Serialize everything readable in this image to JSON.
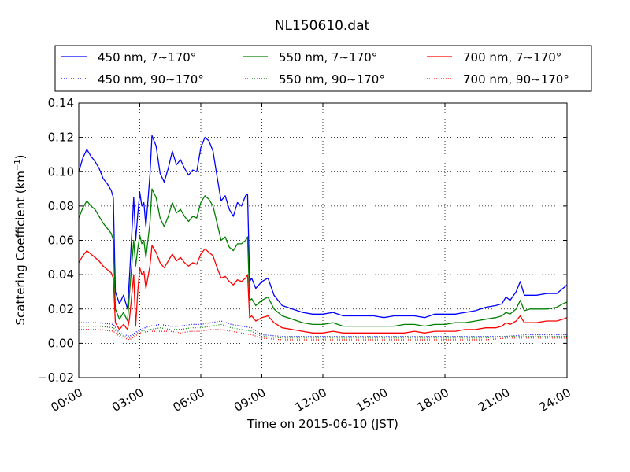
{
  "chart_data": {
    "type": "line",
    "title": "NL150610.dat",
    "xlabel": "Time on 2015-06-10 (JST)",
    "ylabel": "Scattering Coefficient (km",
    "ylabel_sup": "−1",
    "ylabel_close": ")",
    "xlim": [
      0,
      24
    ],
    "ylim": [
      -0.02,
      0.14
    ],
    "grid": true,
    "legend_position": "top",
    "x_ticks": [
      0,
      3,
      6,
      9,
      12,
      15,
      18,
      21,
      24
    ],
    "x_tick_labels": [
      "00:00",
      "03:00",
      "06:00",
      "09:00",
      "12:00",
      "15:00",
      "18:00",
      "21:00",
      "24:00"
    ],
    "y_ticks": [
      -0.02,
      0.0,
      0.02,
      0.04,
      0.06,
      0.08,
      0.1,
      0.12,
      0.14
    ],
    "y_tick_labels": [
      "−0.02",
      "0.00",
      "0.02",
      "0.04",
      "0.06",
      "0.08",
      "0.10",
      "0.12",
      "0.14"
    ],
    "series": [
      {
        "name": "450 nm, 7∼170°",
        "color": "#0000ff",
        "style": "solid",
        "x": [
          0,
          0.2,
          0.4,
          0.6,
          0.8,
          1.0,
          1.2,
          1.4,
          1.6,
          1.7,
          1.8,
          2.0,
          2.2,
          2.4,
          2.5,
          2.7,
          2.8,
          2.9,
          3.0,
          3.1,
          3.2,
          3.3,
          3.5,
          3.6,
          3.8,
          4.0,
          4.2,
          4.4,
          4.6,
          4.8,
          5.0,
          5.2,
          5.4,
          5.6,
          5.8,
          6.0,
          6.2,
          6.4,
          6.6,
          6.8,
          7.0,
          7.2,
          7.4,
          7.6,
          7.8,
          8.0,
          8.2,
          8.3,
          8.4,
          8.5,
          8.7,
          9.0,
          9.3,
          9.6,
          10.0,
          10.5,
          11.0,
          11.5,
          12.0,
          12.5,
          13.0,
          13.5,
          14.0,
          14.5,
          15.0,
          15.5,
          16.0,
          16.5,
          17.0,
          17.5,
          18.0,
          18.5,
          19.0,
          19.5,
          20.0,
          20.5,
          20.8,
          21.0,
          21.2,
          21.5,
          21.7,
          21.9,
          22.2,
          22.5,
          23.0,
          23.5,
          23.8,
          24.0
        ],
        "y": [
          0.1,
          0.108,
          0.113,
          0.109,
          0.106,
          0.102,
          0.096,
          0.093,
          0.089,
          0.085,
          0.03,
          0.023,
          0.028,
          0.02,
          0.04,
          0.085,
          0.06,
          0.075,
          0.088,
          0.08,
          0.082,
          0.068,
          0.098,
          0.121,
          0.115,
          0.099,
          0.094,
          0.102,
          0.112,
          0.104,
          0.107,
          0.102,
          0.098,
          0.101,
          0.1,
          0.114,
          0.12,
          0.118,
          0.112,
          0.097,
          0.083,
          0.086,
          0.078,
          0.074,
          0.082,
          0.08,
          0.086,
          0.087,
          0.036,
          0.038,
          0.032,
          0.036,
          0.038,
          0.028,
          0.022,
          0.02,
          0.018,
          0.017,
          0.017,
          0.018,
          0.016,
          0.016,
          0.016,
          0.016,
          0.015,
          0.016,
          0.016,
          0.016,
          0.015,
          0.017,
          0.017,
          0.017,
          0.018,
          0.019,
          0.021,
          0.022,
          0.023,
          0.027,
          0.025,
          0.03,
          0.036,
          0.028,
          0.028,
          0.028,
          0.029,
          0.029,
          0.032,
          0.034
        ]
      },
      {
        "name": "550 nm, 7∼170°",
        "color": "#008000",
        "style": "solid",
        "x": [
          0,
          0.2,
          0.4,
          0.6,
          0.8,
          1.0,
          1.2,
          1.4,
          1.6,
          1.7,
          1.8,
          2.0,
          2.2,
          2.4,
          2.5,
          2.7,
          2.8,
          2.9,
          3.0,
          3.1,
          3.2,
          3.3,
          3.5,
          3.6,
          3.8,
          4.0,
          4.2,
          4.4,
          4.6,
          4.8,
          5.0,
          5.2,
          5.4,
          5.6,
          5.8,
          6.0,
          6.2,
          6.4,
          6.6,
          6.8,
          7.0,
          7.2,
          7.4,
          7.6,
          7.8,
          8.0,
          8.2,
          8.3,
          8.4,
          8.5,
          8.7,
          9.0,
          9.3,
          9.6,
          10.0,
          10.5,
          11.0,
          11.5,
          12.0,
          12.5,
          13.0,
          13.5,
          14.0,
          14.5,
          15.0,
          15.5,
          16.0,
          16.5,
          17.0,
          17.5,
          18.0,
          18.5,
          19.0,
          19.5,
          20.0,
          20.5,
          20.8,
          21.0,
          21.2,
          21.5,
          21.7,
          21.9,
          22.2,
          22.5,
          23.0,
          23.5,
          23.8,
          24.0
        ],
        "y": [
          0.073,
          0.079,
          0.083,
          0.08,
          0.078,
          0.074,
          0.07,
          0.067,
          0.064,
          0.06,
          0.02,
          0.014,
          0.018,
          0.013,
          0.03,
          0.06,
          0.045,
          0.055,
          0.063,
          0.058,
          0.06,
          0.05,
          0.07,
          0.09,
          0.085,
          0.073,
          0.068,
          0.074,
          0.082,
          0.076,
          0.078,
          0.074,
          0.071,
          0.074,
          0.073,
          0.082,
          0.086,
          0.084,
          0.08,
          0.07,
          0.06,
          0.062,
          0.056,
          0.054,
          0.058,
          0.058,
          0.06,
          0.062,
          0.025,
          0.026,
          0.022,
          0.025,
          0.027,
          0.02,
          0.016,
          0.014,
          0.012,
          0.011,
          0.011,
          0.012,
          0.01,
          0.01,
          0.01,
          0.01,
          0.01,
          0.01,
          0.011,
          0.011,
          0.01,
          0.011,
          0.011,
          0.012,
          0.012,
          0.013,
          0.014,
          0.015,
          0.016,
          0.018,
          0.017,
          0.02,
          0.025,
          0.019,
          0.02,
          0.02,
          0.02,
          0.021,
          0.023,
          0.024
        ]
      },
      {
        "name": "700 nm, 7∼170°",
        "color": "#ff0000",
        "style": "solid",
        "x": [
          0,
          0.2,
          0.4,
          0.6,
          0.8,
          1.0,
          1.2,
          1.4,
          1.6,
          1.7,
          1.8,
          2.0,
          2.2,
          2.4,
          2.5,
          2.7,
          2.8,
          2.9,
          3.0,
          3.1,
          3.2,
          3.3,
          3.5,
          3.6,
          3.8,
          4.0,
          4.2,
          4.4,
          4.6,
          4.8,
          5.0,
          5.2,
          5.4,
          5.6,
          5.8,
          6.0,
          6.2,
          6.4,
          6.6,
          6.8,
          7.0,
          7.2,
          7.4,
          7.6,
          7.8,
          8.0,
          8.2,
          8.3,
          8.4,
          8.5,
          8.7,
          9.0,
          9.3,
          9.6,
          10.0,
          10.5,
          11.0,
          11.5,
          12.0,
          12.5,
          13.0,
          13.5,
          14.0,
          14.5,
          15.0,
          15.5,
          16.0,
          16.5,
          17.0,
          17.5,
          18.0,
          18.5,
          19.0,
          19.5,
          20.0,
          20.5,
          20.8,
          21.0,
          21.2,
          21.5,
          21.7,
          21.9,
          22.2,
          22.5,
          23.0,
          23.5,
          23.8,
          24.0
        ],
        "y": [
          0.047,
          0.051,
          0.054,
          0.052,
          0.05,
          0.048,
          0.045,
          0.043,
          0.041,
          0.038,
          0.012,
          0.008,
          0.011,
          0.008,
          0.015,
          0.04,
          0.01,
          0.03,
          0.044,
          0.04,
          0.042,
          0.032,
          0.045,
          0.057,
          0.053,
          0.047,
          0.044,
          0.048,
          0.052,
          0.048,
          0.05,
          0.047,
          0.045,
          0.047,
          0.046,
          0.052,
          0.055,
          0.053,
          0.051,
          0.044,
          0.038,
          0.039,
          0.036,
          0.034,
          0.037,
          0.036,
          0.038,
          0.04,
          0.015,
          0.016,
          0.013,
          0.015,
          0.016,
          0.012,
          0.009,
          0.008,
          0.007,
          0.006,
          0.006,
          0.007,
          0.006,
          0.006,
          0.006,
          0.006,
          0.006,
          0.006,
          0.006,
          0.007,
          0.006,
          0.007,
          0.007,
          0.007,
          0.008,
          0.008,
          0.009,
          0.009,
          0.01,
          0.012,
          0.011,
          0.013,
          0.016,
          0.012,
          0.012,
          0.012,
          0.013,
          0.013,
          0.014,
          0.015
        ]
      },
      {
        "name": "450 nm, 90∼170°",
        "color": "#0000ff",
        "style": "dotted",
        "x": [
          0,
          1,
          1.7,
          2.0,
          2.5,
          3.0,
          3.5,
          4.0,
          4.5,
          5.0,
          5.5,
          6.0,
          6.5,
          7.0,
          7.5,
          8.0,
          8.5,
          9.0,
          10,
          11,
          12,
          13,
          14,
          15,
          16,
          17,
          18,
          19,
          20,
          21,
          22,
          23,
          24
        ],
        "y": [
          0.012,
          0.012,
          0.011,
          0.006,
          0.004,
          0.008,
          0.01,
          0.011,
          0.01,
          0.01,
          0.011,
          0.011,
          0.012,
          0.013,
          0.011,
          0.01,
          0.009,
          0.005,
          0.004,
          0.004,
          0.004,
          0.004,
          0.004,
          0.004,
          0.004,
          0.004,
          0.004,
          0.004,
          0.004,
          0.004,
          0.005,
          0.005,
          0.005
        ]
      },
      {
        "name": "550 nm, 90∼170°",
        "color": "#008000",
        "style": "dotted",
        "x": [
          0,
          1,
          1.7,
          2.0,
          2.5,
          3.0,
          3.5,
          4.0,
          4.5,
          5.0,
          5.5,
          6.0,
          6.5,
          7.0,
          7.5,
          8.0,
          8.5,
          9.0,
          10,
          11,
          12,
          13,
          14,
          15,
          16,
          17,
          18,
          19,
          20,
          21,
          22,
          23,
          24
        ],
        "y": [
          0.01,
          0.01,
          0.009,
          0.005,
          0.003,
          0.007,
          0.008,
          0.009,
          0.008,
          0.008,
          0.009,
          0.009,
          0.01,
          0.011,
          0.009,
          0.008,
          0.007,
          0.004,
          0.003,
          0.003,
          0.003,
          0.003,
          0.003,
          0.003,
          0.003,
          0.003,
          0.003,
          0.003,
          0.003,
          0.004,
          0.004,
          0.004,
          0.004
        ]
      },
      {
        "name": "700 nm, 90∼170°",
        "color": "#ff0000",
        "style": "dotted",
        "x": [
          0,
          1,
          1.7,
          2.0,
          2.5,
          3.0,
          3.5,
          4.0,
          4.5,
          5.0,
          5.5,
          6.0,
          6.5,
          7.0,
          7.5,
          8.0,
          8.5,
          9.0,
          10,
          11,
          12,
          13,
          14,
          15,
          16,
          17,
          18,
          19,
          20,
          21,
          22,
          23,
          24
        ],
        "y": [
          0.008,
          0.008,
          0.007,
          0.004,
          0.002,
          0.006,
          0.007,
          0.007,
          0.007,
          0.006,
          0.007,
          0.007,
          0.008,
          0.008,
          0.007,
          0.006,
          0.005,
          0.003,
          0.002,
          0.002,
          0.002,
          0.002,
          0.002,
          0.002,
          0.002,
          0.002,
          0.002,
          0.002,
          0.002,
          0.003,
          0.003,
          0.003,
          0.003
        ]
      }
    ]
  }
}
